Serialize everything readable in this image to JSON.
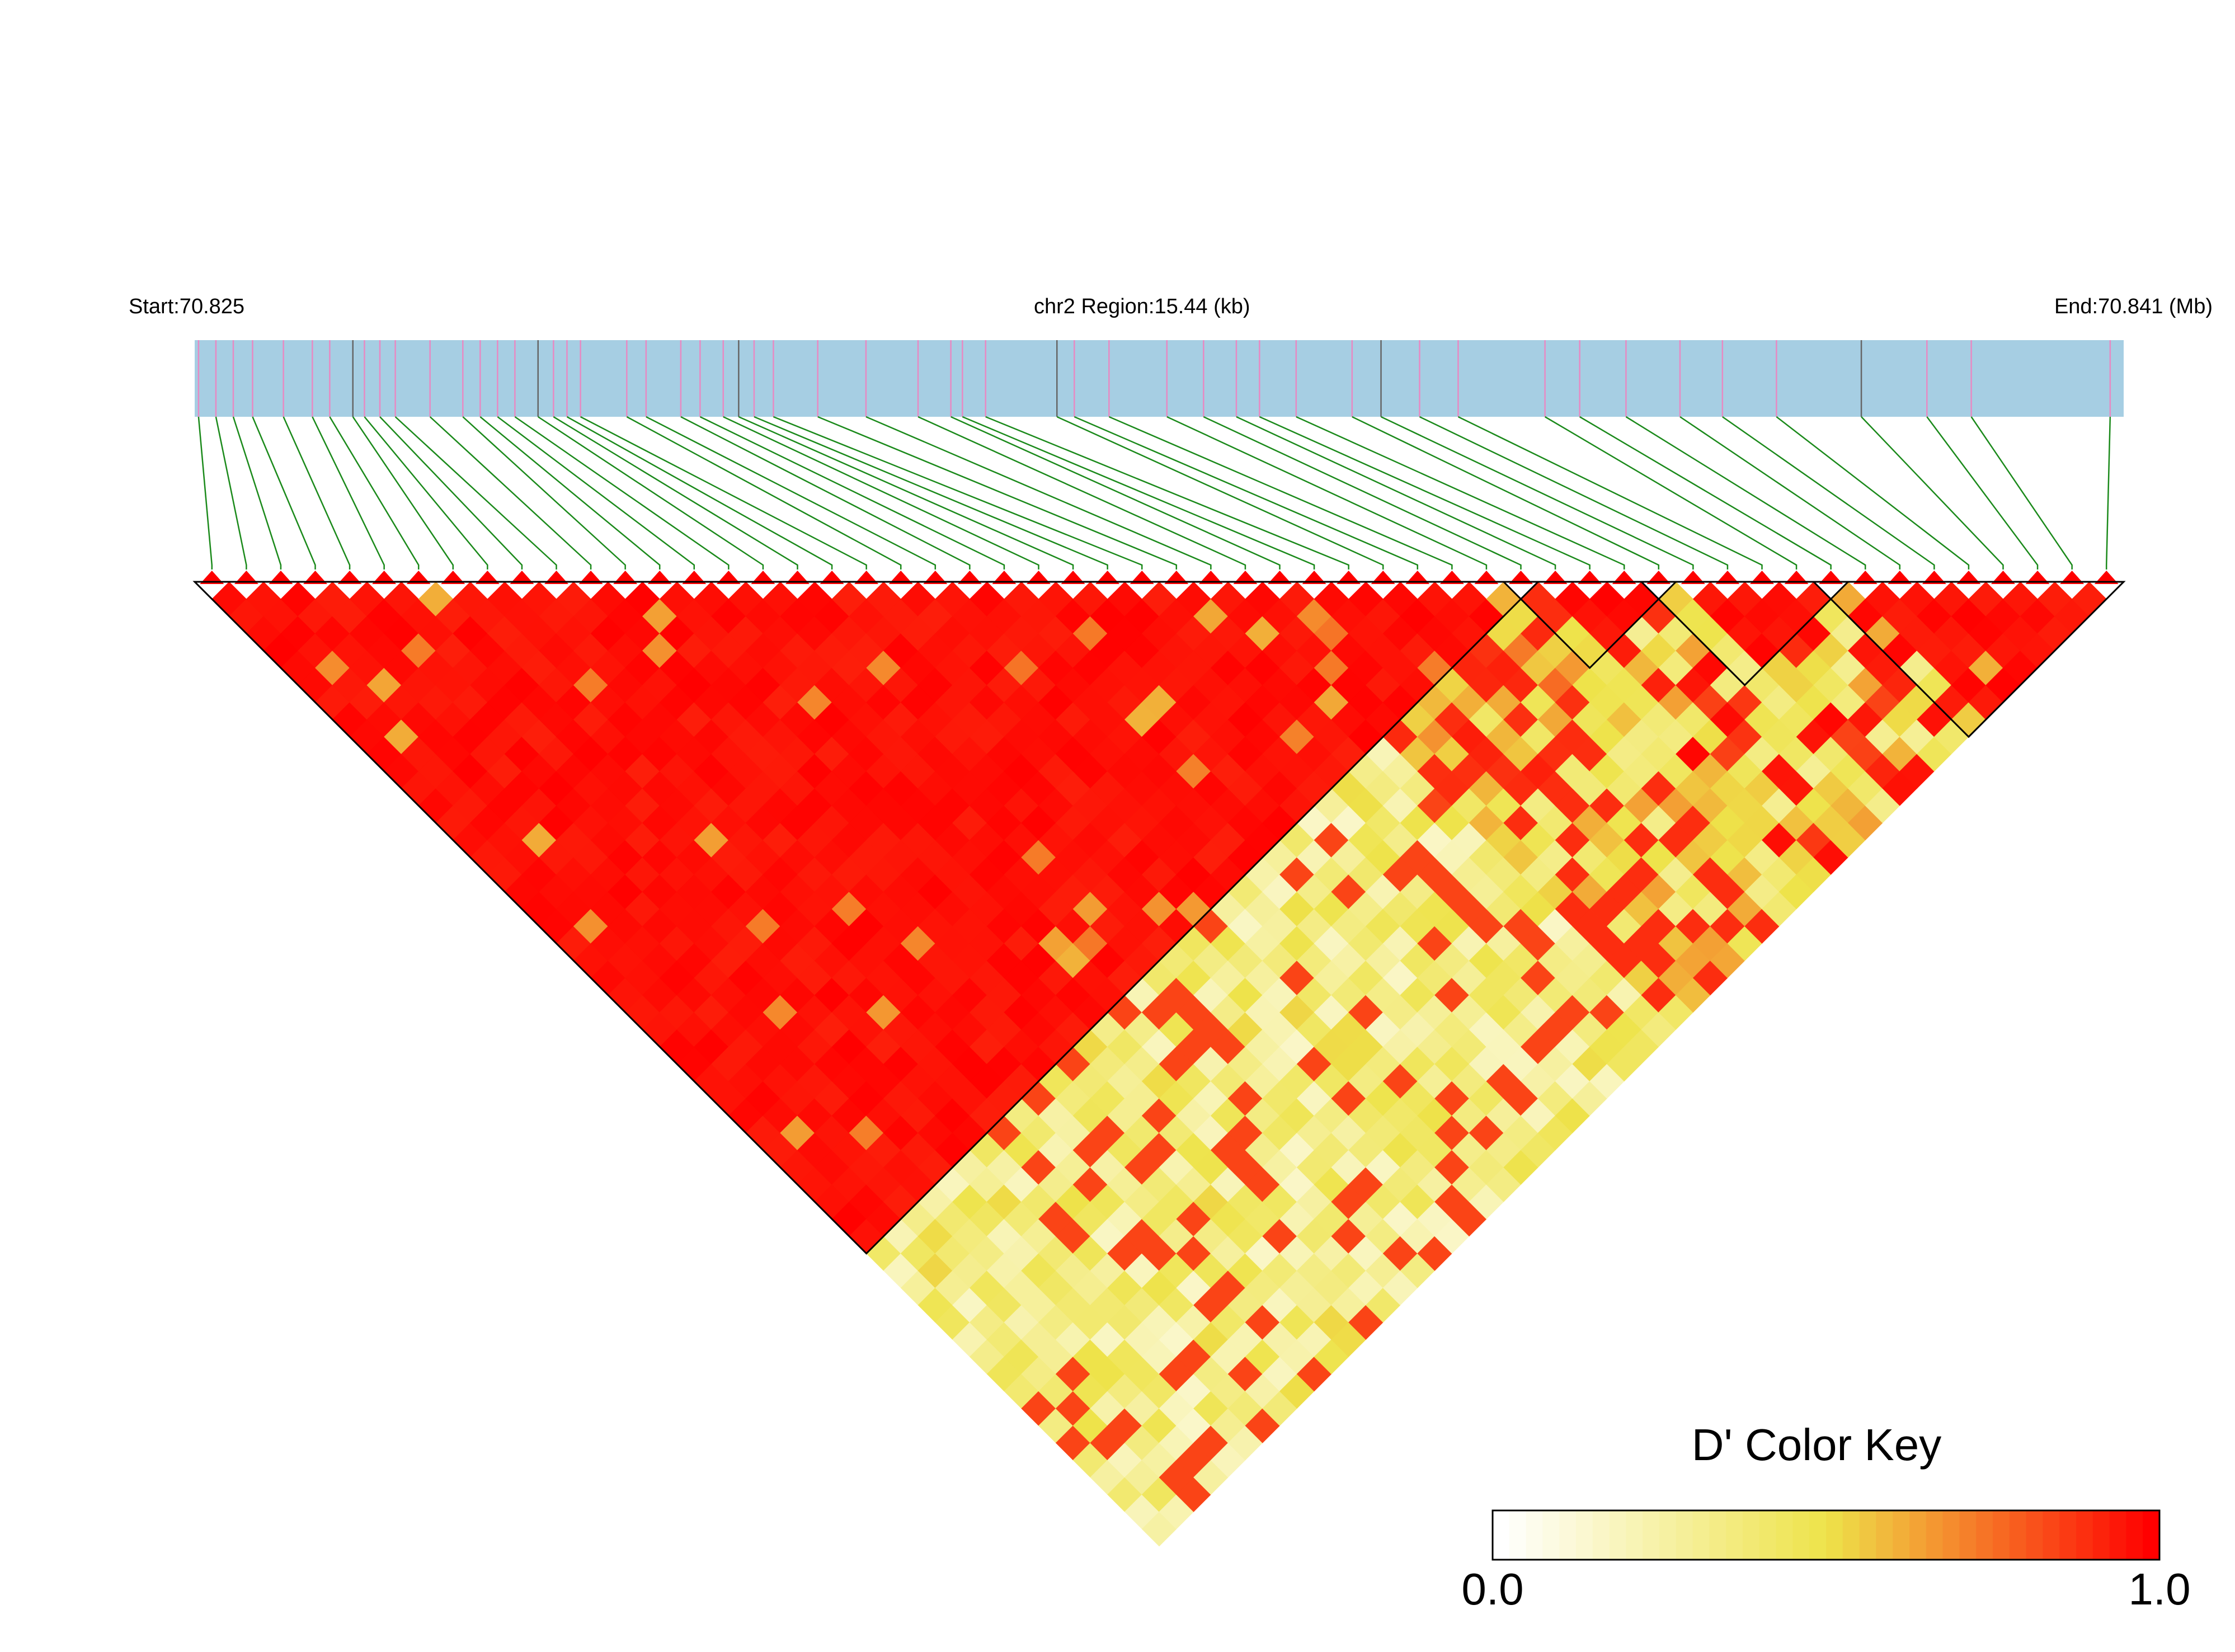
{
  "header": {
    "start_label": "Start:70.825",
    "region_label": "chr2 Region:15.44 (kb)",
    "end_label": "End:70.841 (Mb)"
  },
  "key": {
    "title": "D' Color Key",
    "min_label": "0.0",
    "max_label": "1.0"
  },
  "colors": {
    "bar_fill": "#a6cee3",
    "snp_tick": "#e78ac3",
    "snp_tick_alt": "#666666",
    "connector": "#1b8a1b",
    "marker": "#ff0000",
    "high": "#ff0000",
    "mid": "#eee34a",
    "low": "#ffffff",
    "block_outline": "#000000"
  },
  "chart_data": {
    "type": "heatmap",
    "chromosome": "chr2",
    "start_mb": 70.825,
    "end_mb": 70.841,
    "region_kb": 15.44,
    "snp_count": 56,
    "snp_positions_frac": [
      0.002,
      0.011,
      0.02,
      0.03,
      0.046,
      0.061,
      0.07,
      0.082,
      0.088,
      0.096,
      0.104,
      0.122,
      0.139,
      0.148,
      0.157,
      0.166,
      0.178,
      0.186,
      0.193,
      0.2,
      0.224,
      0.234,
      0.252,
      0.262,
      0.274,
      0.282,
      0.29,
      0.3,
      0.323,
      0.348,
      0.375,
      0.392,
      0.398,
      0.41,
      0.447,
      0.456,
      0.474,
      0.504,
      0.523,
      0.54,
      0.552,
      0.571,
      0.6,
      0.615,
      0.635,
      0.655,
      0.7,
      0.718,
      0.742,
      0.77,
      0.792,
      0.82,
      0.864,
      0.898,
      0.921,
      0.993
    ],
    "value_range": [
      0.0,
      1.0
    ],
    "blocks": [
      [
        0,
        38
      ],
      [
        38,
        42
      ],
      [
        42,
        47
      ],
      [
        47,
        55
      ]
    ],
    "metric": "D'"
  }
}
